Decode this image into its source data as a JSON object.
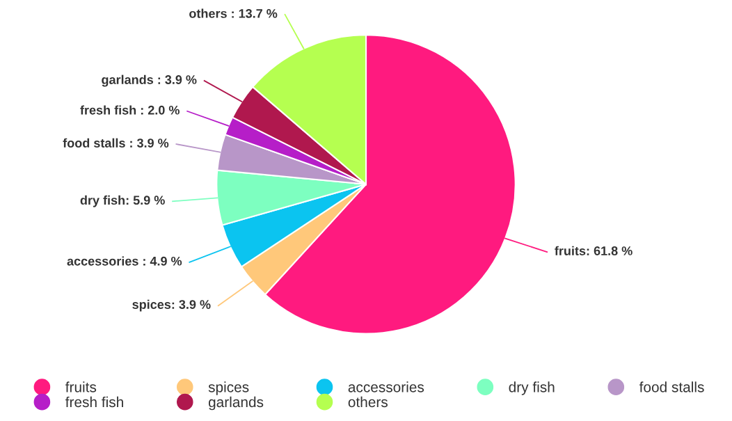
{
  "chart_data": {
    "type": "pie",
    "categories": [
      "fruits",
      "spices",
      "accessories",
      "dry fish",
      "food stalls",
      "fresh fish",
      "garlands",
      "others"
    ],
    "values": [
      61.8,
      3.9,
      4.9,
      5.9,
      3.9,
      2.0,
      3.9,
      13.7
    ],
    "colors": [
      "#ff1a7f",
      "#ffc87a",
      "#0bc4f0",
      "#7dffc0",
      "#b896c8",
      "#b61ec8",
      "#b0184e",
      "#b5ff50"
    ],
    "value_labels": [
      "fruits: 61.8 %",
      "spices: 3.9 %",
      "accessories : 4.9 %",
      "dry fish: 5.9 %",
      "food stalls : 3.9 %",
      "fresh fish : 2.0 %",
      "garlands : 3.9 %",
      "others : 13.7 %"
    ],
    "legend": "bottom"
  }
}
